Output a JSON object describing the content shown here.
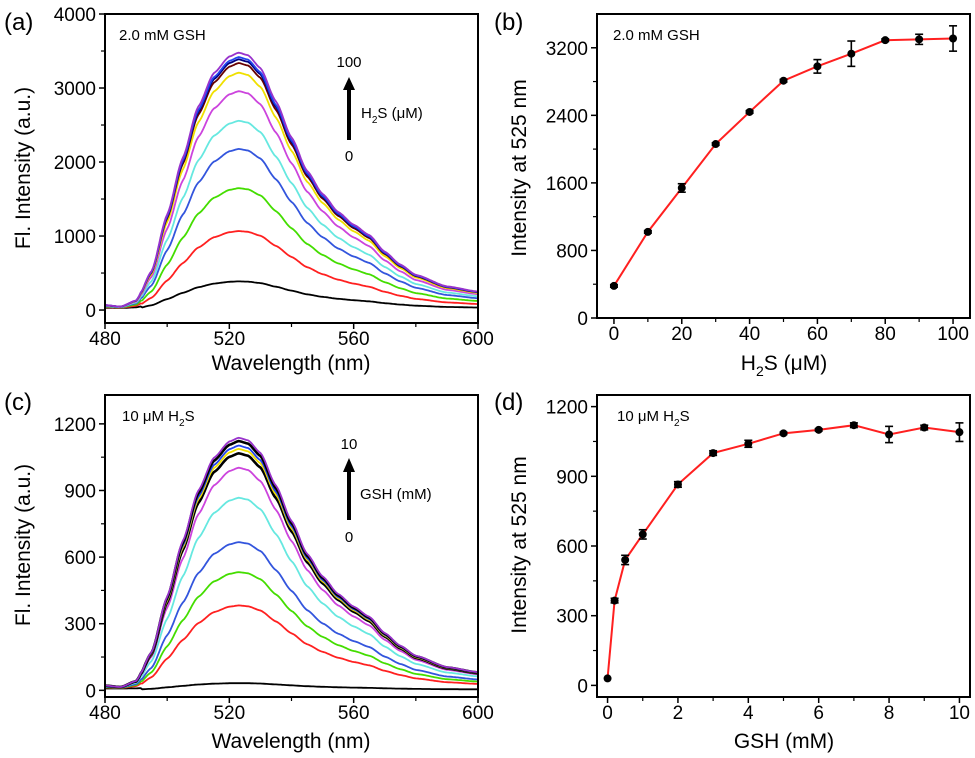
{
  "chart_data": [
    {
      "panel": "(a)",
      "type": "line",
      "annotation": "2.0 mM GSH",
      "arrow_label": {
        "pre": "H",
        "sub": "2",
        "post": "S (μM)"
      },
      "arrow_top": "100",
      "arrow_bottom": "0",
      "xlabel": "Wavelength (nm)",
      "ylabel": "Fl. Intensity (a.u.)",
      "xlim": [
        480,
        600
      ],
      "ylim": [
        -175,
        4000
      ],
      "xticks": [
        480,
        520,
        560,
        600
      ],
      "xtick_labels": [
        "480",
        "520",
        "560",
        "600"
      ],
      "yticks": [
        0,
        1000,
        2000,
        3000,
        4000
      ],
      "ytick_labels": [
        "0",
        "1000",
        "2000",
        "3000",
        "4000"
      ],
      "peak_wavelength": 523,
      "series": [
        {
          "color": "#000000",
          "peak_intensity": 380
        },
        {
          "color": "#ff2020",
          "peak_intensity": 1060
        },
        {
          "color": "#44dd00",
          "peak_intensity": 1640
        },
        {
          "color": "#3355dd",
          "peak_intensity": 2170
        },
        {
          "color": "#66e8e0",
          "peak_intensity": 2550
        },
        {
          "color": "#cc44dd",
          "peak_intensity": 2950
        },
        {
          "color": "#f0e000",
          "peak_intensity": 3200
        },
        {
          "color": "#660000",
          "peak_intensity": 3330
        },
        {
          "color": "#000080",
          "peak_intensity": 3380
        },
        {
          "color": "#2244ee",
          "peak_intensity": 3410
        },
        {
          "color": "#9933cc",
          "peak_intensity": 3470
        }
      ]
    },
    {
      "panel": "(b)",
      "type": "line",
      "annotation": "2.0 mM GSH",
      "xlabel": {
        "pre": "H",
        "sub": "2",
        "post": "S (μM)"
      },
      "ylabel": "Intensity at 525 nm",
      "xlim": [
        -5,
        105
      ],
      "ylim": [
        0,
        3600
      ],
      "xticks": [
        0,
        20,
        40,
        60,
        80,
        100
      ],
      "xtick_labels": [
        "0",
        "20",
        "40",
        "60",
        "80",
        "100"
      ],
      "yticks": [
        0,
        800,
        1600,
        2400,
        3200
      ],
      "ytick_labels": [
        "0",
        "800",
        "1600",
        "2400",
        "3200"
      ],
      "line_color": "#ff2020",
      "x": [
        0,
        10,
        20,
        30,
        40,
        50,
        60,
        70,
        80,
        90,
        100
      ],
      "y": [
        380,
        1020,
        1540,
        2060,
        2440,
        2810,
        2980,
        3130,
        3290,
        3300,
        3310
      ],
      "error": [
        15,
        15,
        50,
        15,
        15,
        15,
        80,
        150,
        15,
        60,
        150
      ]
    },
    {
      "panel": "(c)",
      "type": "line",
      "annotation": {
        "pre": "10 μM H",
        "sub": "2",
        "post": "S"
      },
      "arrow_label": "GSH (mM)",
      "arrow_top": "10",
      "arrow_bottom": "0",
      "xlabel": "Wavelength (nm)",
      "ylabel": "Fl. Intensity (a.u.)",
      "xlim": [
        480,
        600
      ],
      "ylim": [
        -30,
        1330
      ],
      "xticks": [
        480,
        520,
        560,
        600
      ],
      "xtick_labels": [
        "480",
        "520",
        "560",
        "600"
      ],
      "yticks": [
        0,
        300,
        600,
        900,
        1200
      ],
      "ytick_labels": [
        "0",
        "300",
        "600",
        "900",
        "1200"
      ],
      "peak_wavelength": 523,
      "series": [
        {
          "color": "#000000",
          "peak_intensity": 30
        },
        {
          "color": "#ff2020",
          "peak_intensity": 380
        },
        {
          "color": "#44dd00",
          "peak_intensity": 530
        },
        {
          "color": "#3355dd",
          "peak_intensity": 665
        },
        {
          "color": "#66e8e0",
          "peak_intensity": 865
        },
        {
          "color": "#cc44dd",
          "peak_intensity": 1000
        },
        {
          "color": "#000000",
          "peak_intensity": 1065
        },
        {
          "color": "#f0e000",
          "peak_intensity": 1085
        },
        {
          "color": "#2244ee",
          "peak_intensity": 1100
        },
        {
          "color": "#000000",
          "peak_intensity": 1120
        },
        {
          "color": "#9933cc",
          "peak_intensity": 1135
        }
      ]
    },
    {
      "panel": "(d)",
      "type": "line",
      "annotation": {
        "pre": "10 μM H",
        "sub": "2",
        "post": "S"
      },
      "xlabel": "GSH (mM)",
      "ylabel": "Intensity at 525 nm",
      "xlim": [
        -0.3,
        10.3
      ],
      "ylim": [
        -50,
        1250
      ],
      "xticks": [
        0,
        2,
        4,
        6,
        8,
        10
      ],
      "xtick_labels": [
        "0",
        "2",
        "4",
        "6",
        "8",
        "10"
      ],
      "yticks": [
        0,
        300,
        600,
        900,
        1200
      ],
      "ytick_labels": [
        "0",
        "300",
        "600",
        "900",
        "1200"
      ],
      "line_color": "#ff2020",
      "x": [
        0,
        0.2,
        0.5,
        1,
        2,
        3,
        4,
        5,
        6,
        7,
        8,
        9,
        10
      ],
      "y": [
        30,
        365,
        540,
        650,
        865,
        1000,
        1040,
        1085,
        1100,
        1120,
        1080,
        1110,
        1090
      ],
      "error": [
        0,
        10,
        20,
        20,
        12,
        10,
        15,
        5,
        5,
        10,
        35,
        10,
        40
      ]
    }
  ]
}
